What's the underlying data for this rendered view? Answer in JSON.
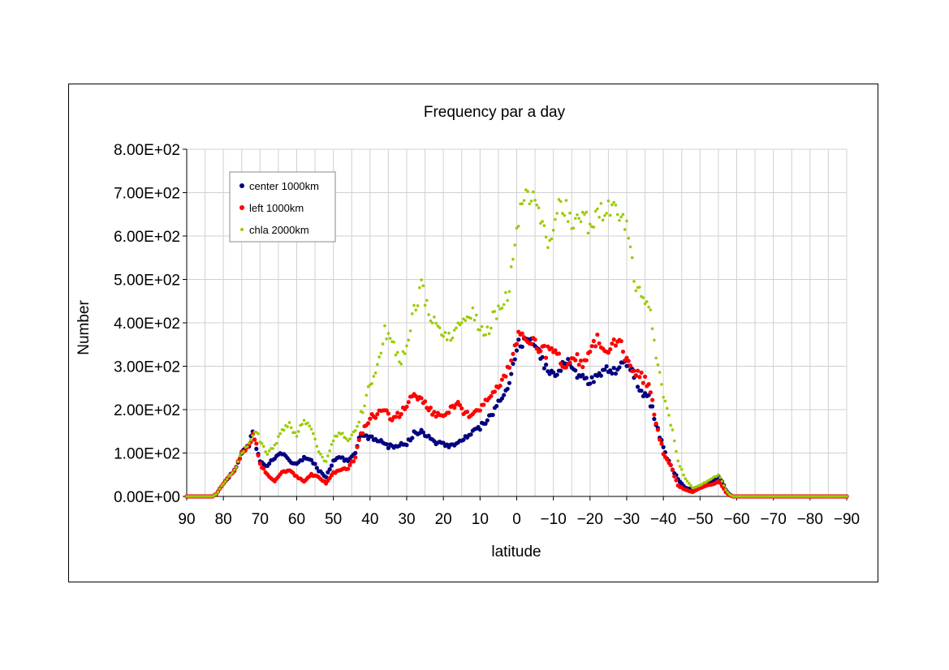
{
  "chart_data": {
    "type": "scatter",
    "title": "Frequency par a day",
    "xlabel": "latitude",
    "ylabel": "Number",
    "xlim": [
      90,
      -90
    ],
    "ylim": [
      0,
      800
    ],
    "x_ticks": [
      90,
      80,
      70,
      60,
      50,
      40,
      30,
      20,
      10,
      0,
      -10,
      -20,
      -30,
      -40,
      -50,
      -60,
      -70,
      -80,
      -90
    ],
    "x_tick_labels": [
      "90",
      "80",
      "70",
      "60",
      "50",
      "40",
      "30",
      "20",
      "10",
      "0",
      "−10",
      "−20",
      "−30",
      "−40",
      "−50",
      "−60",
      "−70",
      "−80",
      "−90"
    ],
    "y_ticks": [
      0,
      100,
      200,
      300,
      400,
      500,
      600,
      700,
      800
    ],
    "y_tick_labels": [
      "0.00E+00",
      "1.00E+02",
      "2.00E+02",
      "3.00E+02",
      "4.00E+02",
      "5.00E+02",
      "6.00E+02",
      "7.00E+02",
      "8.00E+02"
    ],
    "grid": true,
    "legend_position": "top-left",
    "x_step": 0.5,
    "series": [
      {
        "name": "center 1000km",
        "color": "#000080",
        "marker": "circle",
        "anchors": [
          [
            90,
            0
          ],
          [
            83,
            0
          ],
          [
            82,
            5
          ],
          [
            80,
            30
          ],
          [
            77,
            60
          ],
          [
            75,
            100
          ],
          [
            73,
            120
          ],
          [
            72,
            150
          ],
          [
            71,
            110
          ],
          [
            70,
            80
          ],
          [
            68,
            70
          ],
          [
            66,
            90
          ],
          [
            64,
            100
          ],
          [
            62,
            80
          ],
          [
            60,
            75
          ],
          [
            58,
            90
          ],
          [
            56,
            85
          ],
          [
            54,
            60
          ],
          [
            52,
            45
          ],
          [
            50,
            80
          ],
          [
            48,
            90
          ],
          [
            46,
            80
          ],
          [
            44,
            100
          ],
          [
            43,
            140
          ],
          [
            40,
            135
          ],
          [
            38,
            130
          ],
          [
            35,
            115
          ],
          [
            30,
            120
          ],
          [
            28,
            145
          ],
          [
            26,
            150
          ],
          [
            24,
            135
          ],
          [
            22,
            125
          ],
          [
            20,
            120
          ],
          [
            18,
            115
          ],
          [
            16,
            125
          ],
          [
            14,
            135
          ],
          [
            12,
            150
          ],
          [
            10,
            160
          ],
          [
            8,
            175
          ],
          [
            6,
            200
          ],
          [
            4,
            230
          ],
          [
            2,
            260
          ],
          [
            1,
            300
          ],
          [
            0,
            345
          ],
          [
            -2,
            360
          ],
          [
            -4,
            355
          ],
          [
            -6,
            330
          ],
          [
            -8,
            295
          ],
          [
            -10,
            280
          ],
          [
            -12,
            295
          ],
          [
            -14,
            310
          ],
          [
            -16,
            285
          ],
          [
            -18,
            270
          ],
          [
            -20,
            265
          ],
          [
            -22,
            280
          ],
          [
            -24,
            290
          ],
          [
            -26,
            285
          ],
          [
            -28,
            300
          ],
          [
            -30,
            310
          ],
          [
            -32,
            285
          ],
          [
            -34,
            240
          ],
          [
            -36,
            230
          ],
          [
            -37,
            200
          ],
          [
            -38,
            170
          ],
          [
            -40,
            110
          ],
          [
            -42,
            70
          ],
          [
            -44,
            40
          ],
          [
            -46,
            20
          ],
          [
            -48,
            15
          ],
          [
            -50,
            20
          ],
          [
            -52,
            30
          ],
          [
            -54,
            40
          ],
          [
            -55,
            45
          ],
          [
            -56,
            35
          ],
          [
            -57,
            15
          ],
          [
            -58,
            5
          ],
          [
            -59,
            0
          ],
          [
            -90,
            0
          ]
        ]
      },
      {
        "name": "left 1000km",
        "color": "#ff0000",
        "marker": "circle",
        "anchors": [
          [
            90,
            0
          ],
          [
            83,
            0
          ],
          [
            82,
            5
          ],
          [
            80,
            30
          ],
          [
            77,
            60
          ],
          [
            75,
            100
          ],
          [
            73,
            115
          ],
          [
            72,
            140
          ],
          [
            71,
            120
          ],
          [
            70,
            75
          ],
          [
            68,
            50
          ],
          [
            66,
            35
          ],
          [
            64,
            55
          ],
          [
            62,
            60
          ],
          [
            60,
            45
          ],
          [
            58,
            35
          ],
          [
            56,
            50
          ],
          [
            54,
            45
          ],
          [
            52,
            30
          ],
          [
            50,
            55
          ],
          [
            48,
            60
          ],
          [
            46,
            65
          ],
          [
            44,
            90
          ],
          [
            43,
            130
          ],
          [
            42,
            150
          ],
          [
            40,
            180
          ],
          [
            38,
            190
          ],
          [
            36,
            195
          ],
          [
            34,
            180
          ],
          [
            32,
            190
          ],
          [
            30,
            215
          ],
          [
            28,
            235
          ],
          [
            26,
            225
          ],
          [
            24,
            200
          ],
          [
            22,
            190
          ],
          [
            20,
            185
          ],
          [
            18,
            200
          ],
          [
            16,
            210
          ],
          [
            14,
            190
          ],
          [
            12,
            185
          ],
          [
            10,
            200
          ],
          [
            8,
            220
          ],
          [
            6,
            240
          ],
          [
            4,
            260
          ],
          [
            2,
            300
          ],
          [
            1,
            340
          ],
          [
            0,
            365
          ],
          [
            -2,
            370
          ],
          [
            -4,
            360
          ],
          [
            -6,
            345
          ],
          [
            -8,
            330
          ],
          [
            -10,
            340
          ],
          [
            -12,
            310
          ],
          [
            -14,
            300
          ],
          [
            -16,
            325
          ],
          [
            -18,
            300
          ],
          [
            -20,
            330
          ],
          [
            -22,
            360
          ],
          [
            -24,
            340
          ],
          [
            -26,
            350
          ],
          [
            -28,
            360
          ],
          [
            -30,
            310
          ],
          [
            -32,
            290
          ],
          [
            -34,
            275
          ],
          [
            -36,
            260
          ],
          [
            -37,
            220
          ],
          [
            -38,
            170
          ],
          [
            -40,
            100
          ],
          [
            -42,
            70
          ],
          [
            -44,
            25
          ],
          [
            -46,
            15
          ],
          [
            -48,
            10
          ],
          [
            -50,
            20
          ],
          [
            -52,
            25
          ],
          [
            -54,
            30
          ],
          [
            -55,
            35
          ],
          [
            -56,
            25
          ],
          [
            -57,
            10
          ],
          [
            -58,
            3
          ],
          [
            -59,
            0
          ],
          [
            -90,
            0
          ]
        ]
      },
      {
        "name": "chla 2000km",
        "color": "#99cc00",
        "marker": "small-circle",
        "anchors": [
          [
            90,
            0
          ],
          [
            83,
            0
          ],
          [
            82,
            5
          ],
          [
            80,
            30
          ],
          [
            77,
            60
          ],
          [
            75,
            100
          ],
          [
            73,
            120
          ],
          [
            72,
            140
          ],
          [
            71,
            150
          ],
          [
            70,
            130
          ],
          [
            68,
            95
          ],
          [
            66,
            120
          ],
          [
            64,
            150
          ],
          [
            62,
            165
          ],
          [
            60,
            140
          ],
          [
            58,
            175
          ],
          [
            56,
            160
          ],
          [
            54,
            100
          ],
          [
            52,
            80
          ],
          [
            50,
            130
          ],
          [
            48,
            145
          ],
          [
            46,
            130
          ],
          [
            44,
            155
          ],
          [
            42,
            200
          ],
          [
            40,
            260
          ],
          [
            38,
            300
          ],
          [
            36,
            380
          ],
          [
            34,
            360
          ],
          [
            32,
            310
          ],
          [
            30,
            340
          ],
          [
            28,
            430
          ],
          [
            26,
            480
          ],
          [
            24,
            430
          ],
          [
            22,
            390
          ],
          [
            20,
            380
          ],
          [
            18,
            370
          ],
          [
            16,
            400
          ],
          [
            14,
            420
          ],
          [
            12,
            430
          ],
          [
            10,
            390
          ],
          [
            8,
            380
          ],
          [
            6,
            420
          ],
          [
            4,
            430
          ],
          [
            2,
            480
          ],
          [
            1,
            550
          ],
          [
            0,
            630
          ],
          [
            -2,
            690
          ],
          [
            -4,
            700
          ],
          [
            -6,
            660
          ],
          [
            -8,
            580
          ],
          [
            -10,
            620
          ],
          [
            -12,
            680
          ],
          [
            -14,
            650
          ],
          [
            -16,
            620
          ],
          [
            -18,
            640
          ],
          [
            -20,
            620
          ],
          [
            -22,
            660
          ],
          [
            -24,
            640
          ],
          [
            -26,
            670
          ],
          [
            -28,
            650
          ],
          [
            -30,
            620
          ],
          [
            -31,
            560
          ],
          [
            -32,
            500
          ],
          [
            -34,
            460
          ],
          [
            -36,
            430
          ],
          [
            -37,
            400
          ],
          [
            -38,
            320
          ],
          [
            -40,
            230
          ],
          [
            -42,
            170
          ],
          [
            -44,
            80
          ],
          [
            -46,
            40
          ],
          [
            -48,
            20
          ],
          [
            -50,
            25
          ],
          [
            -52,
            35
          ],
          [
            -54,
            45
          ],
          [
            -55,
            50
          ],
          [
            -56,
            35
          ],
          [
            -57,
            15
          ],
          [
            -58,
            5
          ],
          [
            -59,
            0
          ],
          [
            -90,
            0
          ]
        ]
      }
    ]
  }
}
